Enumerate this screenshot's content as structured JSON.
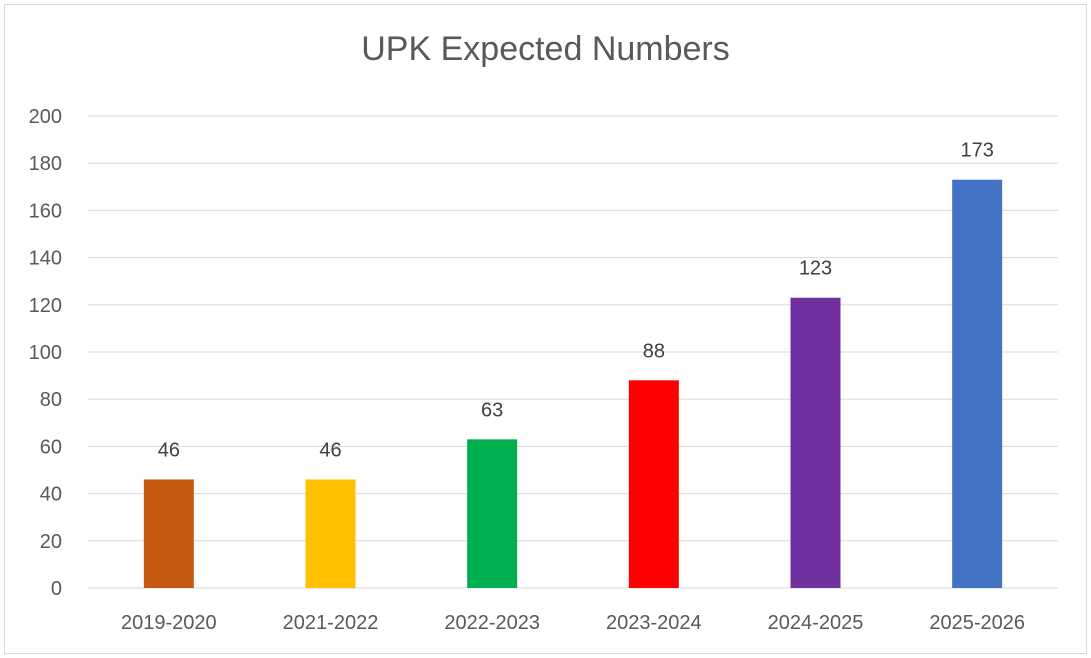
{
  "chart_data": {
    "type": "bar",
    "title": "UPK Expected Numbers",
    "xlabel": "",
    "ylabel": "",
    "categories": [
      "2019-2020",
      "2021-2022",
      "2022-2023",
      "2023-2024",
      "2024-2025",
      "2025-2026"
    ],
    "values": [
      46,
      46,
      63,
      88,
      123,
      173
    ],
    "data_labels": [
      "46",
      "46",
      "63",
      "88",
      "123",
      "173"
    ],
    "bar_colors": [
      "#c55a11",
      "#ffc000",
      "#00b050",
      "#ff0000",
      "#7030a0",
      "#4472c4"
    ],
    "ylim": [
      0,
      200
    ],
    "yticks": [
      0,
      20,
      40,
      60,
      80,
      100,
      120,
      140,
      160,
      180,
      200
    ],
    "grid": true,
    "gridline_color": "#d9d9d9",
    "legend": "none"
  }
}
